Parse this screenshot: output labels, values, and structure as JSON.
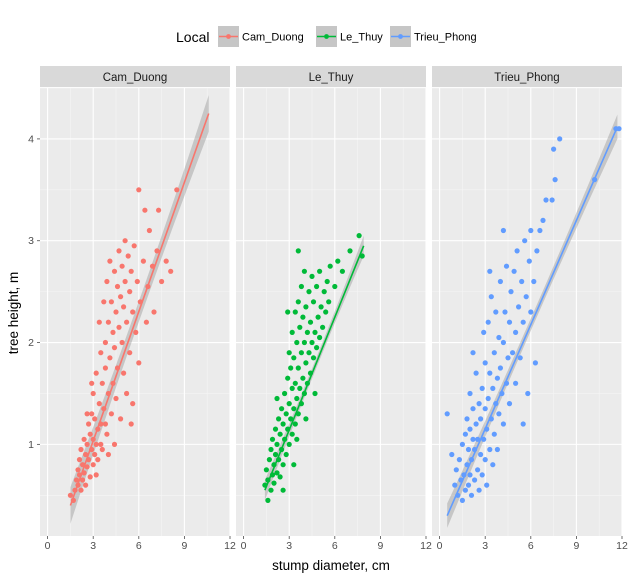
{
  "chart_data": {
    "type": "scatter",
    "facet_by": "Local",
    "legend": {
      "title": "Local",
      "position": "top",
      "entries": [
        "Cam_Duong",
        "Le_Thuy",
        "Trieu_Phong"
      ]
    },
    "xlabel": "stump diameter, cm",
    "ylabel": "tree height, m",
    "xlim": [
      -0.5,
      12
    ],
    "ylim": [
      0.1,
      4.5
    ],
    "xticks": [
      0,
      3,
      6,
      9,
      12
    ],
    "yticks": [
      1,
      2,
      3,
      4
    ],
    "grid": true,
    "smooth": "linear fit with confidence band",
    "series": [
      {
        "name": "Cam_Duong",
        "color": "#F8766D",
        "fit": {
          "x": [
            1.5,
            10.6
          ],
          "y": [
            0.4,
            4.25
          ]
        },
        "band_halfwidth": [
          0.1,
          0.18
        ],
        "points": [
          [
            1.5,
            0.5
          ],
          [
            1.7,
            0.45
          ],
          [
            1.8,
            0.55
          ],
          [
            1.9,
            0.65
          ],
          [
            2.0,
            0.6
          ],
          [
            2.0,
            0.75
          ],
          [
            2.1,
            0.7
          ],
          [
            2.1,
            0.85
          ],
          [
            2.2,
            0.55
          ],
          [
            2.2,
            0.95
          ],
          [
            2.3,
            0.8
          ],
          [
            2.3,
            0.65
          ],
          [
            2.4,
            1.05
          ],
          [
            2.4,
            0.72
          ],
          [
            2.5,
            0.9
          ],
          [
            2.5,
            0.6
          ],
          [
            2.6,
            1.0
          ],
          [
            2.6,
            0.78
          ],
          [
            2.7,
            1.2
          ],
          [
            2.7,
            0.85
          ],
          [
            2.8,
            0.68
          ],
          [
            2.8,
            1.1
          ],
          [
            2.9,
            0.95
          ],
          [
            2.9,
            1.3
          ],
          [
            3.0,
            0.8
          ],
          [
            3.0,
            1.05
          ],
          [
            3.0,
            1.5
          ],
          [
            3.1,
            0.9
          ],
          [
            3.1,
            1.25
          ],
          [
            3.2,
            1.0
          ],
          [
            3.2,
            1.7
          ],
          [
            3.3,
            1.15
          ],
          [
            3.3,
            0.85
          ],
          [
            3.4,
            1.4
          ],
          [
            3.4,
            2.2
          ],
          [
            3.5,
            1.2
          ],
          [
            3.5,
            1.9
          ],
          [
            3.6,
            0.95
          ],
          [
            3.6,
            1.6
          ],
          [
            3.7,
            2.4
          ],
          [
            3.7,
            1.35
          ],
          [
            3.8,
            1.75
          ],
          [
            3.8,
            2.0
          ],
          [
            3.9,
            1.1
          ],
          [
            3.9,
            2.6
          ],
          [
            4.0,
            1.5
          ],
          [
            4.0,
            2.2
          ],
          [
            4.1,
            1.85
          ],
          [
            4.1,
            2.8
          ],
          [
            4.2,
            1.3
          ],
          [
            4.2,
            2.4
          ],
          [
            4.3,
            2.1
          ],
          [
            4.3,
            1.6
          ],
          [
            4.4,
            2.7
          ],
          [
            4.4,
            1.95
          ],
          [
            4.5,
            2.3
          ],
          [
            4.5,
            1.45
          ],
          [
            4.6,
            2.55
          ],
          [
            4.6,
            1.75
          ],
          [
            4.7,
            2.9
          ],
          [
            4.7,
            2.15
          ],
          [
            4.8,
            1.25
          ],
          [
            4.8,
            2.45
          ],
          [
            4.9,
            2.0
          ],
          [
            4.9,
            2.75
          ],
          [
            5.0,
            1.7
          ],
          [
            5.0,
            2.35
          ],
          [
            5.1,
            2.6
          ],
          [
            5.1,
            3.0
          ],
          [
            5.2,
            1.5
          ],
          [
            5.2,
            2.2
          ],
          [
            5.3,
            2.85
          ],
          [
            5.4,
            1.9
          ],
          [
            5.4,
            2.5
          ],
          [
            5.5,
            2.7
          ],
          [
            5.6,
            1.4
          ],
          [
            5.6,
            2.3
          ],
          [
            5.7,
            2.95
          ],
          [
            5.8,
            2.1
          ],
          [
            5.9,
            2.6
          ],
          [
            6.0,
            1.8
          ],
          [
            6.0,
            3.5
          ],
          [
            6.1,
            2.4
          ],
          [
            6.3,
            2.8
          ],
          [
            6.4,
            3.3
          ],
          [
            6.5,
            2.2
          ],
          [
            6.6,
            2.55
          ],
          [
            6.7,
            3.1
          ],
          [
            6.9,
            2.75
          ],
          [
            7.0,
            2.3
          ],
          [
            7.2,
            2.9
          ],
          [
            7.3,
            3.3
          ],
          [
            7.5,
            2.6
          ],
          [
            7.8,
            2.8
          ],
          [
            8.1,
            2.7
          ],
          [
            8.5,
            3.5
          ],
          [
            2.6,
            1.3
          ],
          [
            3.2,
            0.7
          ],
          [
            2.9,
            1.6
          ],
          [
            3.5,
            1.0
          ],
          [
            4.0,
            0.9
          ],
          [
            3.8,
            1.2
          ],
          [
            4.4,
            1.0
          ],
          [
            5.5,
            1.2
          ]
        ]
      },
      {
        "name": "Le_Thuy",
        "color": "#00BA38",
        "fit": {
          "x": [
            1.4,
            7.9
          ],
          "y": [
            0.55,
            2.95
          ]
        },
        "band_halfwidth": [
          0.05,
          0.1
        ],
        "points": [
          [
            1.4,
            0.6
          ],
          [
            1.5,
            0.75
          ],
          [
            1.6,
            0.65
          ],
          [
            1.7,
            0.85
          ],
          [
            1.8,
            0.55
          ],
          [
            1.8,
            0.95
          ],
          [
            1.9,
            0.7
          ],
          [
            1.9,
            1.05
          ],
          [
            2.0,
            0.8
          ],
          [
            2.0,
            0.62
          ],
          [
            2.1,
            0.9
          ],
          [
            2.1,
            1.15
          ],
          [
            2.2,
            0.72
          ],
          [
            2.2,
            1.0
          ],
          [
            2.3,
            0.85
          ],
          [
            2.3,
            1.25
          ],
          [
            2.4,
            0.68
          ],
          [
            2.4,
            1.1
          ],
          [
            2.5,
            0.95
          ],
          [
            2.5,
            1.35
          ],
          [
            2.6,
            0.8
          ],
          [
            2.6,
            1.2
          ],
          [
            2.7,
            1.05
          ],
          [
            2.7,
            1.5
          ],
          [
            2.8,
            0.9
          ],
          [
            2.8,
            1.3
          ],
          [
            2.9,
            1.15
          ],
          [
            2.9,
            1.65
          ],
          [
            3.0,
            1.0
          ],
          [
            3.0,
            1.4
          ],
          [
            3.0,
            1.9
          ],
          [
            3.1,
            1.25
          ],
          [
            3.1,
            1.75
          ],
          [
            3.2,
            1.1
          ],
          [
            3.2,
            1.55
          ],
          [
            3.2,
            2.1
          ],
          [
            3.3,
            1.35
          ],
          [
            3.3,
            1.85
          ],
          [
            3.4,
            1.2
          ],
          [
            3.4,
            1.6
          ],
          [
            3.4,
            2.3
          ],
          [
            3.5,
            1.45
          ],
          [
            3.5,
            2.0
          ],
          [
            3.6,
            1.3
          ],
          [
            3.6,
            1.75
          ],
          [
            3.6,
            2.4
          ],
          [
            3.7,
            1.55
          ],
          [
            3.7,
            2.15
          ],
          [
            3.8,
            1.4
          ],
          [
            3.8,
            1.9
          ],
          [
            3.8,
            2.55
          ],
          [
            3.9,
            1.65
          ],
          [
            3.9,
            2.25
          ],
          [
            4.0,
            1.5
          ],
          [
            4.0,
            2.0
          ],
          [
            4.0,
            2.7
          ],
          [
            4.1,
            1.8
          ],
          [
            4.1,
            2.35
          ],
          [
            4.2,
            1.6
          ],
          [
            4.2,
            2.1
          ],
          [
            4.3,
            1.9
          ],
          [
            4.3,
            2.5
          ],
          [
            4.4,
            1.7
          ],
          [
            4.4,
            2.2
          ],
          [
            4.5,
            2.0
          ],
          [
            4.5,
            2.65
          ],
          [
            4.6,
            1.85
          ],
          [
            4.6,
            2.4
          ],
          [
            4.7,
            2.1
          ],
          [
            4.8,
            1.95
          ],
          [
            4.8,
            2.55
          ],
          [
            4.9,
            2.25
          ],
          [
            5.0,
            2.05
          ],
          [
            5.0,
            2.7
          ],
          [
            5.1,
            2.35
          ],
          [
            5.2,
            2.15
          ],
          [
            5.3,
            2.5
          ],
          [
            5.4,
            2.3
          ],
          [
            5.5,
            2.6
          ],
          [
            5.6,
            2.4
          ],
          [
            5.7,
            2.75
          ],
          [
            6.0,
            2.55
          ],
          [
            6.2,
            2.8
          ],
          [
            6.5,
            2.7
          ],
          [
            7.0,
            2.9
          ],
          [
            7.6,
            3.05
          ],
          [
            7.8,
            2.85
          ],
          [
            1.6,
            0.45
          ],
          [
            2.6,
            0.55
          ],
          [
            3.3,
            0.8
          ],
          [
            3.5,
            1.05
          ],
          [
            4.1,
            1.25
          ],
          [
            4.7,
            1.5
          ],
          [
            2.2,
            1.45
          ],
          [
            2.9,
            2.3
          ],
          [
            3.6,
            2.9
          ]
        ]
      },
      {
        "name": "Trieu_Phong",
        "color": "#619CFF",
        "fit": {
          "x": [
            0.5,
            11.7
          ],
          "y": [
            0.3,
            4.12
          ]
        },
        "band_halfwidth": [
          0.06,
          0.12
        ],
        "points": [
          [
            0.5,
            1.3
          ],
          [
            0.8,
            0.9
          ],
          [
            1.0,
            0.6
          ],
          [
            1.1,
            0.75
          ],
          [
            1.2,
            0.5
          ],
          [
            1.3,
            0.85
          ],
          [
            1.4,
            0.65
          ],
          [
            1.5,
            1.0
          ],
          [
            1.5,
            0.45
          ],
          [
            1.6,
            0.7
          ],
          [
            1.7,
            1.1
          ],
          [
            1.7,
            0.55
          ],
          [
            1.8,
            0.8
          ],
          [
            1.8,
            1.25
          ],
          [
            1.9,
            0.6
          ],
          [
            1.9,
            0.95
          ],
          [
            2.0,
            0.7
          ],
          [
            2.0,
            1.15
          ],
          [
            2.0,
            1.5
          ],
          [
            2.1,
            0.5
          ],
          [
            2.1,
            0.85
          ],
          [
            2.2,
            1.05
          ],
          [
            2.2,
            1.35
          ],
          [
            2.3,
            0.65
          ],
          [
            2.3,
            0.95
          ],
          [
            2.4,
            1.2
          ],
          [
            2.4,
            1.7
          ],
          [
            2.5,
            0.75
          ],
          [
            2.5,
            1.05
          ],
          [
            2.6,
            1.4
          ],
          [
            2.6,
            0.55
          ],
          [
            2.7,
            0.9
          ],
          [
            2.7,
            1.25
          ],
          [
            2.8,
            1.55
          ],
          [
            2.8,
            0.7
          ],
          [
            2.9,
            1.05
          ],
          [
            2.9,
            2.1
          ],
          [
            3.0,
            0.85
          ],
          [
            3.0,
            1.35
          ],
          [
            3.0,
            1.8
          ],
          [
            3.1,
            1.15
          ],
          [
            3.1,
            0.6
          ],
          [
            3.2,
            1.45
          ],
          [
            3.2,
            2.2
          ],
          [
            3.3,
            0.95
          ],
          [
            3.3,
            1.7
          ],
          [
            3.4,
            1.25
          ],
          [
            3.4,
            2.45
          ],
          [
            3.5,
            1.55
          ],
          [
            3.5,
            0.8
          ],
          [
            3.6,
            1.9
          ],
          [
            3.6,
            1.1
          ],
          [
            3.7,
            1.4
          ],
          [
            3.7,
            2.3
          ],
          [
            3.8,
            1.65
          ],
          [
            3.8,
            0.95
          ],
          [
            3.9,
            2.05
          ],
          [
            3.9,
            1.3
          ],
          [
            4.0,
            1.75
          ],
          [
            4.0,
            2.6
          ],
          [
            4.1,
            1.5
          ],
          [
            4.2,
            2.0
          ],
          [
            4.2,
            1.2
          ],
          [
            4.3,
            2.3
          ],
          [
            4.4,
            1.6
          ],
          [
            4.4,
            2.75
          ],
          [
            4.5,
            1.85
          ],
          [
            4.6,
            2.2
          ],
          [
            4.6,
            1.4
          ],
          [
            4.7,
            2.5
          ],
          [
            4.8,
            1.9
          ],
          [
            4.9,
            2.7
          ],
          [
            5.0,
            2.1
          ],
          [
            5.0,
            1.6
          ],
          [
            5.1,
            2.9
          ],
          [
            5.2,
            2.35
          ],
          [
            5.3,
            1.85
          ],
          [
            5.4,
            2.6
          ],
          [
            5.5,
            2.2
          ],
          [
            5.6,
            3.0
          ],
          [
            5.7,
            2.45
          ],
          [
            5.8,
            1.5
          ],
          [
            5.9,
            2.8
          ],
          [
            6.0,
            2.3
          ],
          [
            6.0,
            3.1
          ],
          [
            6.2,
            2.6
          ],
          [
            6.4,
            2.9
          ],
          [
            6.6,
            3.1
          ],
          [
            6.8,
            3.2
          ],
          [
            7.0,
            3.4
          ],
          [
            7.4,
            3.4
          ],
          [
            7.6,
            3.6
          ],
          [
            7.5,
            3.9
          ],
          [
            7.9,
            4.0
          ],
          [
            10.2,
            3.6
          ],
          [
            11.6,
            4.1
          ],
          [
            11.8,
            4.1
          ],
          [
            2.2,
            1.9
          ],
          [
            3.3,
            2.7
          ],
          [
            4.2,
            3.1
          ],
          [
            5.5,
            1.2
          ],
          [
            6.3,
            1.8
          ]
        ]
      }
    ]
  }
}
